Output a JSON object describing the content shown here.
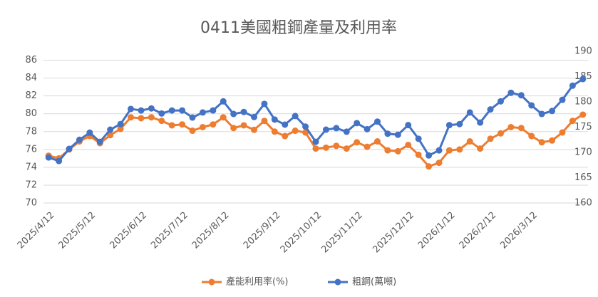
{
  "chart_data": {
    "type": "line",
    "title": "0411美國粗鋼產量及利用率",
    "categories": [
      "2025/4/12",
      null,
      null,
      null,
      "2025/5/12",
      null,
      null,
      null,
      null,
      "2025/6/12",
      null,
      null,
      null,
      "2025/7/12",
      null,
      null,
      null,
      "2025/8/12",
      null,
      null,
      null,
      null,
      "2025/9/12",
      null,
      null,
      null,
      "2025/10/12",
      null,
      null,
      null,
      "2025/11/12",
      null,
      null,
      null,
      null,
      "2025/12/12",
      null,
      null,
      null,
      "2026/1/12",
      null,
      null,
      null,
      "2026/2/12",
      null,
      null,
      null,
      "2026/3/12",
      null,
      null,
      null,
      null,
      null
    ],
    "series": [
      {
        "name": "產能利用率(%)",
        "color": "#ed7d31",
        "axis": "y",
        "values": [
          75.3,
          75.0,
          76.0,
          76.9,
          77.5,
          76.7,
          77.6,
          78.3,
          79.6,
          79.5,
          79.6,
          79.2,
          78.7,
          78.8,
          78.1,
          78.5,
          78.8,
          79.6,
          78.4,
          78.7,
          78.2,
          79.2,
          78.0,
          77.5,
          78.1,
          77.9,
          76.1,
          76.2,
          76.4,
          76.1,
          76.8,
          76.3,
          76.9,
          75.9,
          75.8,
          76.5,
          75.4,
          74.1,
          74.5,
          75.9,
          76.0,
          76.9,
          76.1,
          77.2,
          77.8,
          78.5,
          78.4,
          77.5,
          76.8,
          77.0,
          77.9,
          79.2,
          79.9
        ]
      },
      {
        "name": "粗鋼(萬噸)",
        "color": "#4472c4",
        "axis": "y2",
        "values": [
          169.0,
          168.3,
          170.7,
          172.5,
          173.9,
          172.1,
          174.5,
          175.6,
          178.6,
          178.3,
          178.7,
          177.7,
          178.3,
          178.3,
          176.9,
          177.9,
          178.3,
          180.1,
          177.6,
          178.0,
          177.0,
          179.6,
          176.5,
          175.5,
          177.2,
          175.1,
          172.1,
          174.5,
          174.8,
          174.1,
          175.8,
          174.6,
          176.1,
          173.7,
          173.5,
          175.4,
          172.7,
          169.4,
          170.4,
          175.4,
          175.6,
          177.9,
          175.9,
          178.5,
          180.1,
          181.8,
          181.3,
          179.3,
          177.6,
          178.2,
          180.4,
          183.2,
          184.5
        ]
      }
    ],
    "ylim": [
      70,
      87
    ],
    "yticks": [
      70,
      72,
      74,
      76,
      78,
      80,
      82,
      84,
      86
    ],
    "y2lim": [
      160,
      190
    ],
    "y2ticks": [
      160,
      165,
      170,
      175,
      180,
      185,
      190
    ],
    "grid": true,
    "legend": "bottom"
  }
}
